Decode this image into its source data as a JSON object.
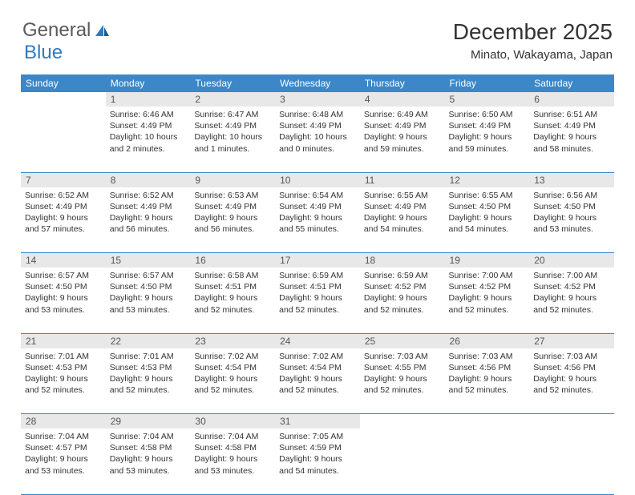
{
  "logo": {
    "text1": "General",
    "text2": "Blue"
  },
  "title": "December 2025",
  "location": "Minato, Wakayama, Japan",
  "colors": {
    "header_bg": "#3b87c8",
    "header_text": "#ffffff",
    "daynum_bg": "#e8e8e8",
    "border": "#3b87c8",
    "logo_gray": "#5a5a5a",
    "logo_blue": "#2c7bbf"
  },
  "weekdays": [
    "Sunday",
    "Monday",
    "Tuesday",
    "Wednesday",
    "Thursday",
    "Friday",
    "Saturday"
  ],
  "weeks": [
    {
      "nums": [
        "",
        "1",
        "2",
        "3",
        "4",
        "5",
        "6"
      ],
      "cells": [
        [],
        [
          "Sunrise: 6:46 AM",
          "Sunset: 4:49 PM",
          "Daylight: 10 hours",
          "and 2 minutes."
        ],
        [
          "Sunrise: 6:47 AM",
          "Sunset: 4:49 PM",
          "Daylight: 10 hours",
          "and 1 minutes."
        ],
        [
          "Sunrise: 6:48 AM",
          "Sunset: 4:49 PM",
          "Daylight: 10 hours",
          "and 0 minutes."
        ],
        [
          "Sunrise: 6:49 AM",
          "Sunset: 4:49 PM",
          "Daylight: 9 hours",
          "and 59 minutes."
        ],
        [
          "Sunrise: 6:50 AM",
          "Sunset: 4:49 PM",
          "Daylight: 9 hours",
          "and 59 minutes."
        ],
        [
          "Sunrise: 6:51 AM",
          "Sunset: 4:49 PM",
          "Daylight: 9 hours",
          "and 58 minutes."
        ]
      ]
    },
    {
      "nums": [
        "7",
        "8",
        "9",
        "10",
        "11",
        "12",
        "13"
      ],
      "cells": [
        [
          "Sunrise: 6:52 AM",
          "Sunset: 4:49 PM",
          "Daylight: 9 hours",
          "and 57 minutes."
        ],
        [
          "Sunrise: 6:52 AM",
          "Sunset: 4:49 PM",
          "Daylight: 9 hours",
          "and 56 minutes."
        ],
        [
          "Sunrise: 6:53 AM",
          "Sunset: 4:49 PM",
          "Daylight: 9 hours",
          "and 56 minutes."
        ],
        [
          "Sunrise: 6:54 AM",
          "Sunset: 4:49 PM",
          "Daylight: 9 hours",
          "and 55 minutes."
        ],
        [
          "Sunrise: 6:55 AM",
          "Sunset: 4:49 PM",
          "Daylight: 9 hours",
          "and 54 minutes."
        ],
        [
          "Sunrise: 6:55 AM",
          "Sunset: 4:50 PM",
          "Daylight: 9 hours",
          "and 54 minutes."
        ],
        [
          "Sunrise: 6:56 AM",
          "Sunset: 4:50 PM",
          "Daylight: 9 hours",
          "and 53 minutes."
        ]
      ]
    },
    {
      "nums": [
        "14",
        "15",
        "16",
        "17",
        "18",
        "19",
        "20"
      ],
      "cells": [
        [
          "Sunrise: 6:57 AM",
          "Sunset: 4:50 PM",
          "Daylight: 9 hours",
          "and 53 minutes."
        ],
        [
          "Sunrise: 6:57 AM",
          "Sunset: 4:50 PM",
          "Daylight: 9 hours",
          "and 53 minutes."
        ],
        [
          "Sunrise: 6:58 AM",
          "Sunset: 4:51 PM",
          "Daylight: 9 hours",
          "and 52 minutes."
        ],
        [
          "Sunrise: 6:59 AM",
          "Sunset: 4:51 PM",
          "Daylight: 9 hours",
          "and 52 minutes."
        ],
        [
          "Sunrise: 6:59 AM",
          "Sunset: 4:52 PM",
          "Daylight: 9 hours",
          "and 52 minutes."
        ],
        [
          "Sunrise: 7:00 AM",
          "Sunset: 4:52 PM",
          "Daylight: 9 hours",
          "and 52 minutes."
        ],
        [
          "Sunrise: 7:00 AM",
          "Sunset: 4:52 PM",
          "Daylight: 9 hours",
          "and 52 minutes."
        ]
      ]
    },
    {
      "nums": [
        "21",
        "22",
        "23",
        "24",
        "25",
        "26",
        "27"
      ],
      "cells": [
        [
          "Sunrise: 7:01 AM",
          "Sunset: 4:53 PM",
          "Daylight: 9 hours",
          "and 52 minutes."
        ],
        [
          "Sunrise: 7:01 AM",
          "Sunset: 4:53 PM",
          "Daylight: 9 hours",
          "and 52 minutes."
        ],
        [
          "Sunrise: 7:02 AM",
          "Sunset: 4:54 PM",
          "Daylight: 9 hours",
          "and 52 minutes."
        ],
        [
          "Sunrise: 7:02 AM",
          "Sunset: 4:54 PM",
          "Daylight: 9 hours",
          "and 52 minutes."
        ],
        [
          "Sunrise: 7:03 AM",
          "Sunset: 4:55 PM",
          "Daylight: 9 hours",
          "and 52 minutes."
        ],
        [
          "Sunrise: 7:03 AM",
          "Sunset: 4:56 PM",
          "Daylight: 9 hours",
          "and 52 minutes."
        ],
        [
          "Sunrise: 7:03 AM",
          "Sunset: 4:56 PM",
          "Daylight: 9 hours",
          "and 52 minutes."
        ]
      ]
    },
    {
      "nums": [
        "28",
        "29",
        "30",
        "31",
        "",
        "",
        ""
      ],
      "cells": [
        [
          "Sunrise: 7:04 AM",
          "Sunset: 4:57 PM",
          "Daylight: 9 hours",
          "and 53 minutes."
        ],
        [
          "Sunrise: 7:04 AM",
          "Sunset: 4:58 PM",
          "Daylight: 9 hours",
          "and 53 minutes."
        ],
        [
          "Sunrise: 7:04 AM",
          "Sunset: 4:58 PM",
          "Daylight: 9 hours",
          "and 53 minutes."
        ],
        [
          "Sunrise: 7:05 AM",
          "Sunset: 4:59 PM",
          "Daylight: 9 hours",
          "and 54 minutes."
        ],
        [],
        [],
        []
      ]
    }
  ]
}
